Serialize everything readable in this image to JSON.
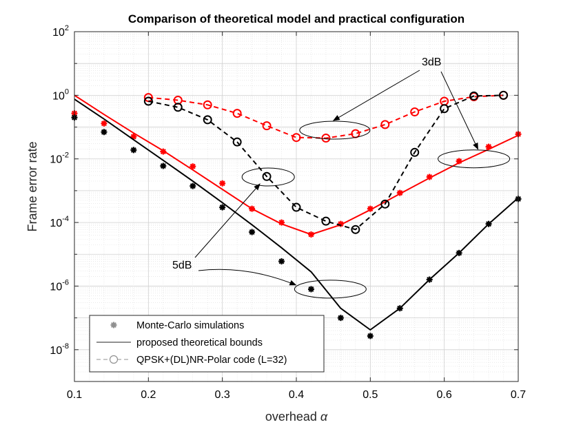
{
  "chart_data": {
    "type": "line",
    "title": "Comparison of theoretical model and practical configuration",
    "xlabel": "overhead",
    "xlabel_symbol": "α",
    "ylabel": "Frame error rate",
    "xlim": [
      0.1,
      0.7
    ],
    "ylim_log10": [
      -9,
      2
    ],
    "yscale": "log",
    "grid": true,
    "x_ticks": [
      "0.1",
      "0.2",
      "0.3",
      "0.4",
      "0.5",
      "0.6",
      "0.7"
    ],
    "y_ticks": [
      {
        "base": "10",
        "exp": "2"
      },
      {
        "base": "10",
        "exp": "0"
      },
      {
        "base": "10",
        "exp": "-2"
      },
      {
        "base": "10",
        "exp": "-4"
      },
      {
        "base": "10",
        "exp": "-6"
      },
      {
        "base": "10",
        "exp": "-8"
      }
    ],
    "colors": {
      "red": "#ff0000",
      "black": "#000000",
      "grey": "#909090"
    },
    "series": [
      {
        "name": "Monte-Carlo simulations 3dB",
        "style": "star",
        "color": "red",
        "x": [
          0.1,
          0.14,
          0.18,
          0.22,
          0.26,
          0.3,
          0.34,
          0.38,
          0.42,
          0.46,
          0.5,
          0.54,
          0.58,
          0.62,
          0.66,
          0.7
        ],
        "y": [
          0.27,
          0.13,
          0.05,
          0.017,
          0.0058,
          0.0017,
          0.00027,
          0.0001,
          4.2e-05,
          9e-05,
          0.00027,
          0.00085,
          0.0027,
          0.0085,
          0.024,
          0.06
        ]
      },
      {
        "name": "Monte-Carlo simulations 5dB",
        "style": "star",
        "color": "black",
        "x": [
          0.1,
          0.14,
          0.18,
          0.22,
          0.26,
          0.3,
          0.34,
          0.38,
          0.42,
          0.46,
          0.5,
          0.54,
          0.58,
          0.62,
          0.66,
          0.7
        ],
        "y": [
          0.2,
          0.07,
          0.019,
          0.006,
          0.0014,
          0.0003,
          5e-05,
          6e-06,
          8e-07,
          1e-07,
          2.7e-08,
          2e-07,
          1.6e-06,
          1.1e-05,
          9e-05,
          0.00055
        ]
      },
      {
        "name": "proposed theoretical bounds 3dB",
        "style": "solid",
        "color": "red",
        "x": [
          0.1,
          0.14,
          0.18,
          0.22,
          0.26,
          0.3,
          0.34,
          0.38,
          0.42,
          0.46,
          0.5,
          0.54,
          0.58,
          0.62,
          0.66,
          0.7
        ],
        "y": [
          1.0,
          0.25,
          0.065,
          0.018,
          0.0045,
          0.0011,
          0.00027,
          9e-05,
          4.2e-05,
          8.5e-05,
          0.00025,
          0.0008,
          0.0025,
          0.0075,
          0.02,
          0.055
        ]
      },
      {
        "name": "proposed theoretical bounds 5dB",
        "style": "solid",
        "color": "black",
        "x": [
          0.1,
          0.14,
          0.18,
          0.22,
          0.26,
          0.3,
          0.34,
          0.38,
          0.42,
          0.46,
          0.5,
          0.54,
          0.58,
          0.62,
          0.66,
          0.7
        ],
        "y": [
          0.75,
          0.18,
          0.04,
          0.009,
          0.002,
          0.00042,
          8.5e-05,
          1.6e-05,
          2.8e-06,
          2e-07,
          4.2e-08,
          2e-07,
          1.6e-06,
          1.1e-05,
          9e-05,
          0.0006
        ]
      },
      {
        "name": "QPSK+(DL)NR-Polar code (L=32) 3dB",
        "style": "dashed-circle",
        "color": "red",
        "x": [
          0.2,
          0.24,
          0.28,
          0.32,
          0.36,
          0.4,
          0.44,
          0.48,
          0.52,
          0.56,
          0.6,
          0.64,
          0.68
        ],
        "y": [
          0.85,
          0.7,
          0.5,
          0.27,
          0.11,
          0.047,
          0.045,
          0.062,
          0.12,
          0.3,
          0.65,
          0.9,
          1.0
        ]
      },
      {
        "name": "QPSK+(DL)NR-Polar code (L=32) 5dB",
        "style": "dashed-circle",
        "color": "black",
        "x": [
          0.2,
          0.24,
          0.28,
          0.32,
          0.36,
          0.4,
          0.44,
          0.48,
          0.52,
          0.56,
          0.6,
          0.64,
          0.68
        ],
        "y": [
          0.65,
          0.42,
          0.17,
          0.034,
          0.0028,
          0.0003,
          0.00011,
          6e-05,
          0.00038,
          0.016,
          0.38,
          0.95,
          1.0
        ]
      }
    ],
    "legend": {
      "placement": "bottom-left",
      "entries": [
        {
          "label": "Monte-Carlo simulations",
          "style": "star"
        },
        {
          "label": "proposed theoretical bounds",
          "style": "solid"
        },
        {
          "label": "QPSK+(DL)NR-Polar code (L=32)",
          "style": "dashed-circle"
        }
      ]
    },
    "annotations": [
      {
        "text": "3dB",
        "targets": [
          "ellipse around red curves near 0.45",
          "ellipse around red curves near 0.64"
        ]
      },
      {
        "text": "5dB",
        "targets": [
          "ellipse around black curves near 0.36",
          "ellipse around black curves near 0.44"
        ]
      }
    ]
  }
}
